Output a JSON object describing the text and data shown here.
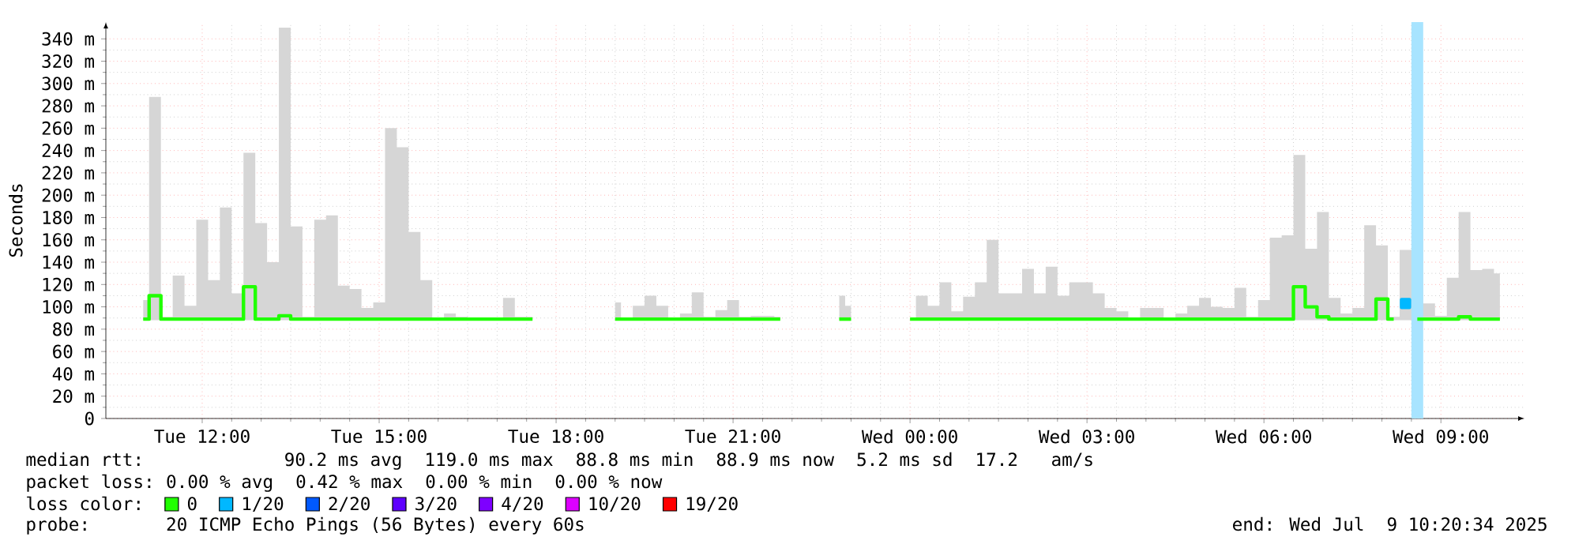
{
  "chart_data": {
    "type": "step",
    "ylabel": "Seconds",
    "legend_title": "loss color:",
    "legend": "bottom",
    "grid": true,
    "xlim": [
      "2025-07-08T10:22",
      "2025-07-09T10:25"
    ],
    "ylim": [
      0,
      355
    ],
    "xticks": [
      {
        "value": "2025-07-08T12:00",
        "label": "Tue 12:00"
      },
      {
        "value": "2025-07-08T15:00",
        "label": "Tue 15:00"
      },
      {
        "value": "2025-07-08T18:00",
        "label": "Tue 18:00"
      },
      {
        "value": "2025-07-08T21:00",
        "label": "Tue 21:00"
      },
      {
        "value": "2025-07-09T00:00",
        "label": "Wed 00:00"
      },
      {
        "value": "2025-07-09T03:00",
        "label": "Wed 03:00"
      },
      {
        "value": "2025-07-09T06:00",
        "label": "Wed 06:00"
      },
      {
        "value": "2025-07-09T09:00",
        "label": "Wed 09:00"
      }
    ],
    "yticks": [
      0,
      {
        "value": 20,
        "label": "20 m"
      },
      {
        "value": 40,
        "label": "40 m"
      },
      {
        "value": 60,
        "label": "60 m"
      },
      {
        "value": 80,
        "label": "80 m"
      },
      {
        "value": 100,
        "label": "100 m"
      },
      {
        "value": 120,
        "label": "120 m"
      },
      {
        "value": 140,
        "label": "140 m"
      },
      {
        "value": 160,
        "label": "160 m"
      },
      {
        "value": 180,
        "label": "180 m"
      },
      {
        "value": 200,
        "label": "200 m"
      },
      {
        "value": 220,
        "label": "220 m"
      },
      {
        "value": 240,
        "label": "240 m"
      },
      {
        "value": 260,
        "label": "260 m"
      },
      {
        "value": 280,
        "label": "280 m"
      },
      {
        "value": 300,
        "label": "300 m"
      },
      {
        "value": 320,
        "label": "320 m"
      },
      {
        "value": 340,
        "label": "340 m"
      }
    ],
    "bands": [
      {
        "axis": "x",
        "from": "2025-07-09T08:30",
        "to": "2025-07-09T08:42",
        "color": "#a8e4ff"
      }
    ],
    "series": [
      {
        "name": "0",
        "color": "#20ff00",
        "x": [
          "2025-07-08T11:00",
          "2025-07-08T11:12",
          "2025-07-08T11:24",
          "2025-07-08T11:36",
          "2025-07-08T11:48",
          "2025-07-08T12:00",
          "2025-07-08T12:12",
          "2025-07-08T12:24",
          "2025-07-08T12:36",
          "2025-07-08T12:48",
          "2025-07-08T13:00",
          "2025-07-08T13:12",
          "2025-07-08T13:24",
          "2025-07-08T13:36",
          "2025-07-08T13:48",
          "2025-07-08T14:00",
          "2025-07-08T14:12",
          "2025-07-08T14:24",
          "2025-07-08T14:36",
          "2025-07-08T14:48",
          "2025-07-08T15:00",
          "2025-07-08T15:12",
          "2025-07-08T15:24",
          "2025-07-08T15:36",
          "2025-07-08T15:48",
          "2025-07-08T16:00",
          "2025-07-08T16:12",
          "2025-07-08T16:24",
          "2025-07-08T16:36",
          "2025-07-08T16:48",
          "2025-07-08T17:00",
          "2025-07-08T17:12",
          "2025-07-08T17:24",
          "2025-07-08T17:36",
          "2025-07-08T17:48",
          "2025-07-08T18:00",
          "2025-07-08T18:12",
          "2025-07-08T18:24",
          "2025-07-08T18:36",
          "2025-07-08T18:48",
          "2025-07-08T19:00",
          "2025-07-08T19:12",
          "2025-07-08T19:24",
          "2025-07-08T19:36",
          "2025-07-08T19:48",
          "2025-07-08T20:00",
          "2025-07-08T20:12",
          "2025-07-08T20:24",
          "2025-07-08T20:36",
          "2025-07-08T20:48",
          "2025-07-08T21:00",
          "2025-07-08T21:12",
          "2025-07-08T21:24",
          "2025-07-08T21:36",
          "2025-07-08T21:48",
          "2025-07-08T22:00",
          "2025-07-08T22:12",
          "2025-07-08T22:24",
          "2025-07-08T22:36",
          "2025-07-08T22:48",
          "2025-07-08T23:00",
          "2025-07-08T23:12",
          "2025-07-08T23:24",
          "2025-07-08T23:36",
          "2025-07-08T23:48",
          "2025-07-09T00:00",
          "2025-07-09T00:12",
          "2025-07-09T00:24",
          "2025-07-09T00:36",
          "2025-07-09T00:48",
          "2025-07-09T01:00",
          "2025-07-09T01:12",
          "2025-07-09T01:24",
          "2025-07-09T01:36",
          "2025-07-09T01:48",
          "2025-07-09T02:00",
          "2025-07-09T02:12",
          "2025-07-09T02:24",
          "2025-07-09T02:36",
          "2025-07-09T02:48",
          "2025-07-09T03:00",
          "2025-07-09T03:12",
          "2025-07-09T03:24",
          "2025-07-09T03:36",
          "2025-07-09T03:48",
          "2025-07-09T04:00",
          "2025-07-09T04:12",
          "2025-07-09T04:24",
          "2025-07-09T04:36",
          "2025-07-09T04:48",
          "2025-07-09T05:00",
          "2025-07-09T05:12",
          "2025-07-09T05:24",
          "2025-07-09T05:36",
          "2025-07-09T05:48",
          "2025-07-09T06:00",
          "2025-07-09T06:12",
          "2025-07-09T06:24",
          "2025-07-09T06:36",
          "2025-07-09T06:48",
          "2025-07-09T07:00",
          "2025-07-09T07:12",
          "2025-07-09T07:24",
          "2025-07-09T07:36",
          "2025-07-09T07:48",
          "2025-07-09T08:00",
          "2025-07-09T08:12",
          "2025-07-09T08:24",
          "2025-07-09T08:36",
          "2025-07-09T08:48",
          "2025-07-09T09:00",
          "2025-07-09T09:12",
          "2025-07-09T09:24",
          "2025-07-09T09:36",
          "2025-07-09T09:48",
          "2025-07-09T10:00"
        ],
        "values": [
          89,
          110,
          89,
          89,
          89,
          89,
          89,
          89,
          89,
          118,
          89,
          89,
          92,
          89,
          89,
          89,
          89,
          89,
          89,
          89,
          89,
          89,
          89,
          89,
          89,
          89,
          89,
          89,
          89,
          89,
          89,
          89,
          89,
          89,
          null,
          null,
          null,
          null,
          null,
          null,
          89,
          89,
          89,
          89,
          89,
          89,
          89,
          89,
          89,
          89,
          89,
          89,
          89,
          89,
          89,
          null,
          null,
          null,
          null,
          89,
          89,
          null,
          null,
          null,
          null,
          89,
          89,
          89,
          89,
          89,
          89,
          89,
          89,
          89,
          89,
          89,
          89,
          89,
          89,
          89,
          89,
          89,
          89,
          89,
          89,
          89,
          89,
          89,
          89,
          89,
          89,
          89,
          89,
          89,
          89,
          89,
          89,
          89,
          118,
          100,
          91,
          89,
          89,
          89,
          89,
          107,
          89,
          null,
          89,
          89,
          89,
          89,
          91,
          89,
          89,
          89
        ],
        "upper": [
          106,
          288,
          91,
          128,
          101,
          178,
          124,
          189,
          112,
          238,
          175,
          140,
          350,
          172,
          91,
          178,
          182,
          119,
          116,
          99,
          104,
          260,
          243,
          167,
          124,
          89,
          94,
          91,
          89,
          89,
          89,
          108,
          91,
          91,
          null,
          null,
          null,
          null,
          null,
          null,
          104,
          89,
          101,
          110,
          101,
          89,
          94,
          113,
          91,
          97,
          106,
          91,
          92,
          92,
          91,
          null,
          null,
          null,
          null,
          110,
          101,
          null,
          null,
          null,
          null,
          89,
          110,
          101,
          122,
          96,
          109,
          122,
          160,
          112,
          112,
          134,
          112,
          136,
          110,
          122,
          122,
          112,
          99,
          96,
          89,
          99,
          99,
          89,
          94,
          101,
          108,
          100,
          99,
          117,
          91,
          106,
          162,
          164,
          236,
          152,
          185,
          108,
          94,
          99,
          173,
          155,
          91,
          151,
          241,
          103,
          92,
          126,
          185,
          133,
          134,
          130
        ],
        "lower": [
          88,
          88,
          88,
          88,
          88,
          88,
          88,
          88,
          88,
          88,
          88,
          88,
          88,
          88,
          88,
          88,
          88,
          88,
          88,
          88,
          88,
          88,
          88,
          88,
          88,
          88,
          88,
          88,
          88,
          88,
          88,
          88,
          88,
          88,
          null,
          null,
          null,
          null,
          null,
          null,
          88,
          88,
          88,
          88,
          88,
          88,
          88,
          88,
          88,
          88,
          88,
          88,
          88,
          88,
          88,
          null,
          null,
          null,
          null,
          88,
          88,
          null,
          null,
          null,
          null,
          88,
          88,
          88,
          88,
          88,
          88,
          88,
          88,
          88,
          88,
          88,
          88,
          88,
          88,
          88,
          88,
          88,
          88,
          88,
          88,
          88,
          88,
          88,
          88,
          88,
          88,
          88,
          88,
          88,
          88,
          88,
          88,
          88,
          88,
          88,
          88,
          88,
          88,
          88,
          88,
          88,
          88,
          88,
          88,
          88,
          88,
          88,
          88,
          88,
          88,
          88
        ]
      },
      {
        "name": "1/20",
        "color": "#00b8ff",
        "type": "scatter",
        "marker": "square",
        "x": [
          "2025-07-09T08:24"
        ],
        "values": [
          103
        ]
      },
      {
        "name": "2/20",
        "color": "#0059ff"
      },
      {
        "name": "3/20",
        "color": "#5e00ff"
      },
      {
        "name": "4/20",
        "color": "#7e00ff"
      },
      {
        "name": "10/20",
        "color": "#dd00ff"
      },
      {
        "name": "19/20",
        "color": "#ff0000"
      }
    ],
    "annotations": [
      "median rtt:",
      "90.2 ms avg",
      "119.0 ms max",
      "88.8 ms min",
      "88.9 ms now",
      "5.2 ms sd",
      "17.2",
      "am/s",
      "packet loss:",
      "0.00 % avg",
      "0.42 % max",
      "0.00 % min",
      "0.00 % now",
      "probe:",
      "20 ICMP Echo Pings (56 Bytes) every 60s",
      "end: Wed Jul",
      "9 10:20:34 2025"
    ]
  }
}
